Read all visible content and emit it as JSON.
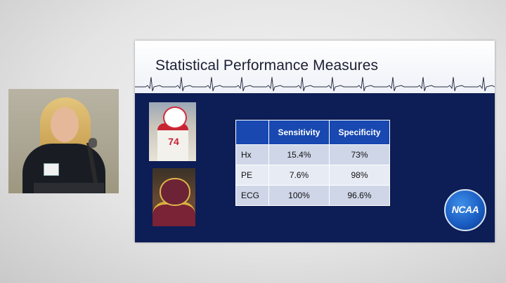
{
  "slide": {
    "title": "Statistical Performance Measures",
    "table": {
      "headers": [
        "",
        "Sensitivity",
        "Specificity"
      ],
      "rows": [
        {
          "label": "Hx",
          "sensitivity": "15.4%",
          "specificity": "73%"
        },
        {
          "label": "PE",
          "sensitivity": "7.6%",
          "specificity": "98%"
        },
        {
          "label": "ECG",
          "sensitivity": "100%",
          "specificity": "96.6%"
        }
      ]
    },
    "photo1_number": "74",
    "logo_text": "NCAA"
  },
  "colors": {
    "slide_background": "#0d1d55",
    "table_header": "#1848b0",
    "row_shaded": "#cfd6e8",
    "row_light": "#e7ebf4"
  },
  "icons": [
    "ekg-line-icon",
    "ncaa-logo-icon"
  ]
}
